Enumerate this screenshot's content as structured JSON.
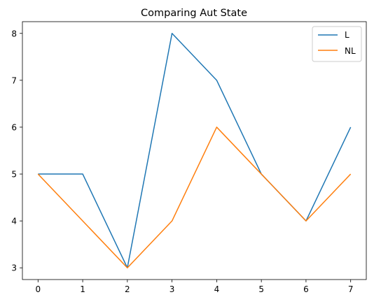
{
  "chart_data": {
    "type": "line",
    "title": "Comparing Aut State",
    "xlabel": "",
    "ylabel": "",
    "x": [
      0,
      1,
      2,
      3,
      4,
      5,
      6,
      7
    ],
    "series": [
      {
        "name": "L",
        "color": "#1f77b4",
        "values": [
          5,
          5,
          3,
          8,
          7,
          5,
          4,
          6
        ]
      },
      {
        "name": "NL",
        "color": "#ff7f0e",
        "values": [
          5,
          4,
          3,
          4,
          6,
          5,
          4,
          5
        ]
      }
    ],
    "xticks": [
      "0",
      "1",
      "2",
      "3",
      "4",
      "5",
      "6",
      "7"
    ],
    "yticks": [
      "3",
      "4",
      "5",
      "6",
      "7",
      "8"
    ],
    "xlim": [
      -0.35,
      7.35
    ],
    "ylim": [
      2.75,
      8.25
    ],
    "grid": false,
    "legend": "top-right"
  }
}
